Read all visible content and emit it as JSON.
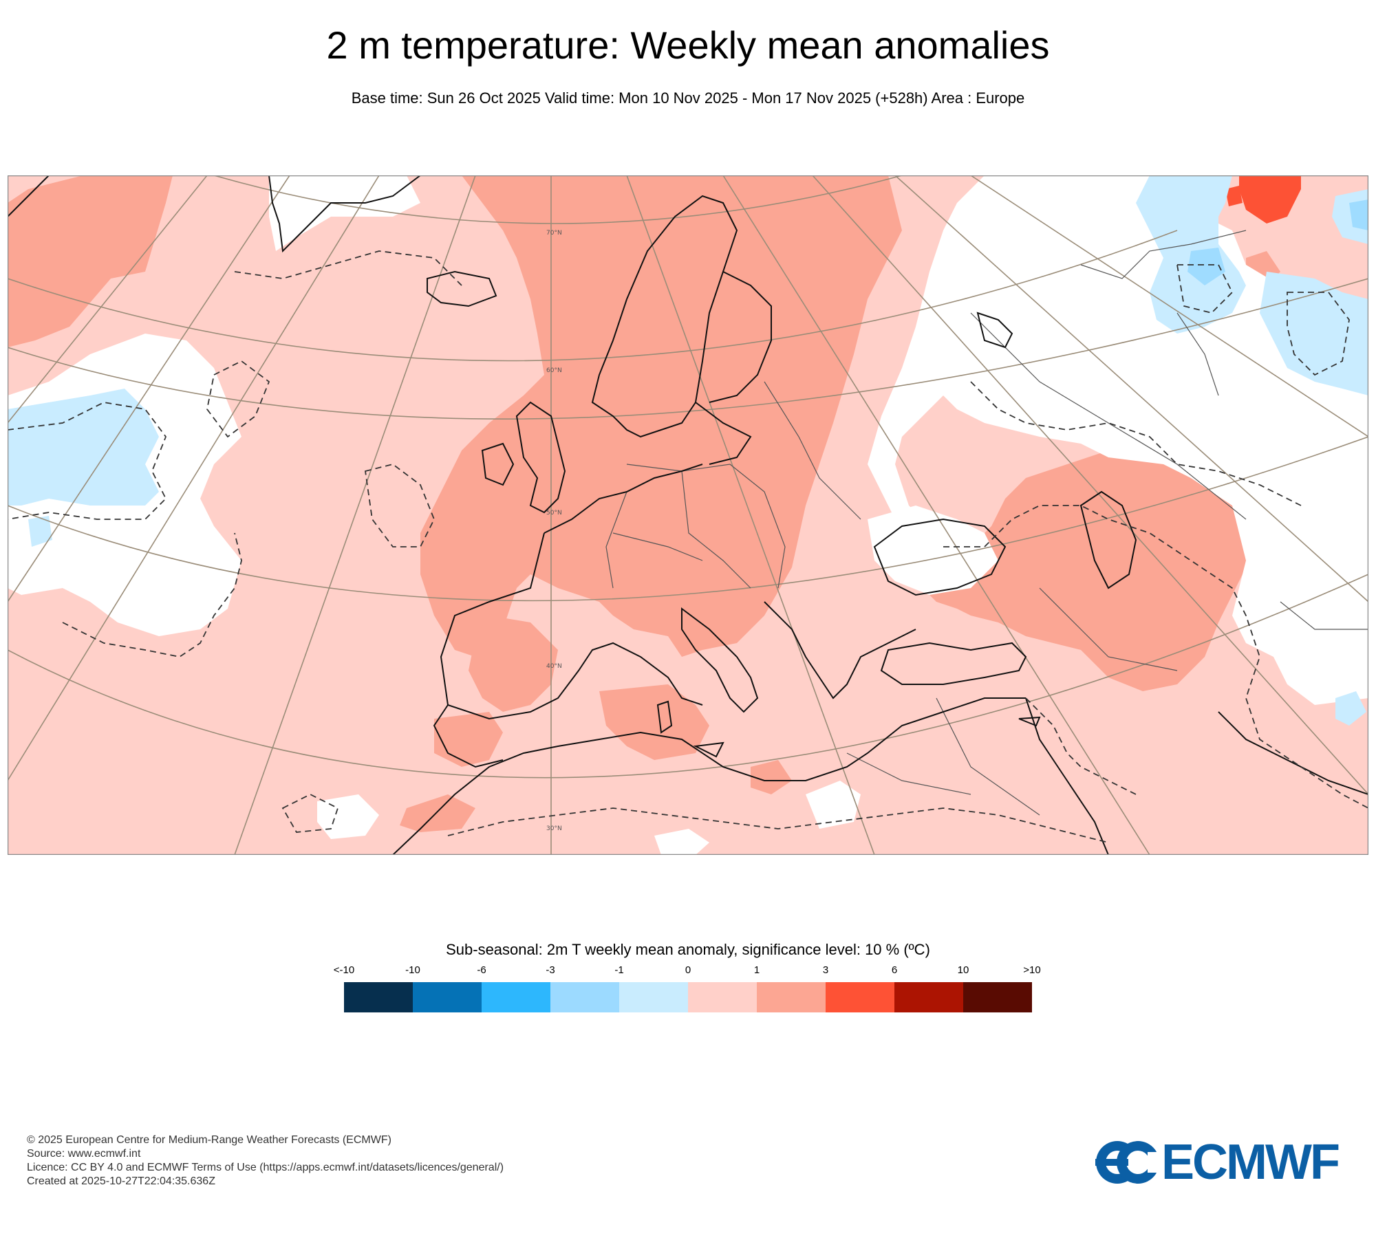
{
  "title": "2 m temperature: Weekly mean anomalies",
  "subtitle": "Base time: Sun 26 Oct 2025 Valid time: Mon 10 Nov 2025 - Mon 17 Nov 2025 (+528h) Area : Europe",
  "map": {
    "lat_labels": [
      "70°N",
      "60°N",
      "50°N",
      "40°N",
      "30°N"
    ],
    "colors": {
      "ocean_base": "#ffd0c9",
      "warm_1_3": "#fba694",
      "warm_3_6": "#fd5235",
      "cool_0_m1": "#c9ecff",
      "cool_m1_m3": "#9fdcff",
      "neutral": "#ffffff",
      "coast": "#111111",
      "border": "#555555",
      "grid": "#9a8c78"
    }
  },
  "legend": {
    "title": "Sub-seasonal: 2m T weekly mean anomaly, significance level: 10 % (ºC)",
    "ticks": [
      "<-10",
      "-10",
      "-6",
      "-3",
      "-1",
      "0",
      "1",
      "3",
      "6",
      "10",
      ">10"
    ],
    "colors": [
      "#062f4e",
      "#0572b6",
      "#2db7fd",
      "#9cdaff",
      "#c9ecfe",
      "#ffd0c9",
      "#fca693",
      "#fe5235",
      "#ac1402",
      "#590b02"
    ]
  },
  "footer": {
    "line1": "© 2025 European Centre for Medium-Range Weather Forecasts (ECMWF)",
    "line2": "Source: www.ecmwf.int",
    "line3": "Licence: CC BY 4.0 and ECMWF Terms of Use (https://apps.ecmwf.int/datasets/licences/general/)",
    "line4": "Created at 2025-10-27T22:04:35.636Z"
  },
  "logo": {
    "text": "ECMWF",
    "color": "#0b5fa5"
  }
}
